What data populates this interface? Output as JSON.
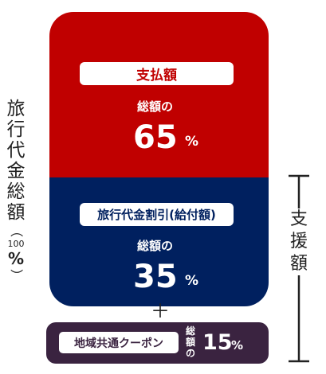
{
  "total": {
    "chars": [
      "旅",
      "行",
      "代",
      "金",
      "総",
      "額"
    ],
    "paren_open": "（",
    "number": "100",
    "percent": "%",
    "paren_close": "）"
  },
  "payment": {
    "label": "支払額",
    "share_label": "総額の",
    "value": "65",
    "unit": "%",
    "color": "#c00000"
  },
  "discount": {
    "label": "旅行代金割引(給付額)",
    "share_label": "総額の",
    "value": "35",
    "unit": "%",
    "color": "#00205f"
  },
  "plus": "＋",
  "coupon": {
    "label": "地域共通クーポン",
    "share_label_chars": [
      "総",
      "額",
      "の"
    ],
    "value": "15",
    "unit": "%",
    "color": "#3a2340"
  },
  "support": {
    "chars": [
      "支",
      "援",
      "額"
    ]
  }
}
